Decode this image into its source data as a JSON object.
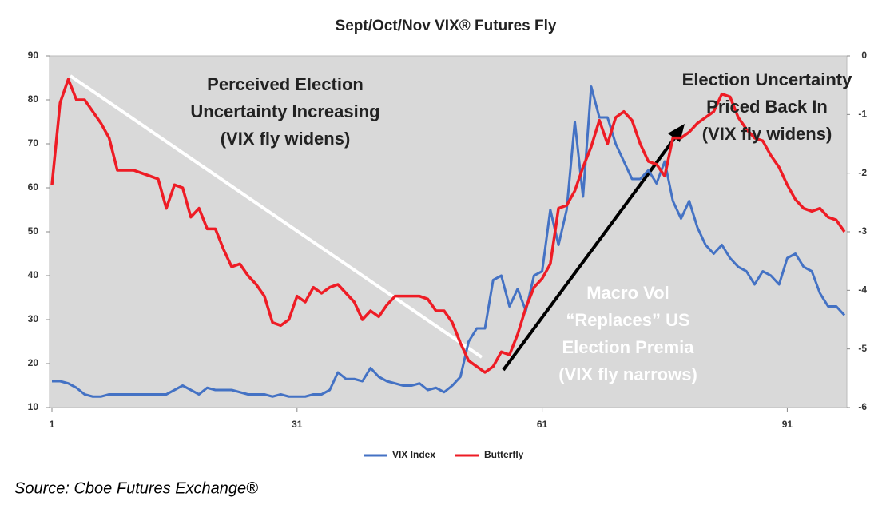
{
  "chart_data": {
    "type": "line",
    "title": "Sept/Oct/Nov VIX® Futures Fly",
    "source": "Source: Cboe Futures Exchange®",
    "x": [
      1,
      2,
      3,
      4,
      5,
      6,
      7,
      8,
      9,
      10,
      11,
      12,
      13,
      14,
      15,
      16,
      17,
      18,
      19,
      20,
      21,
      22,
      23,
      24,
      25,
      26,
      27,
      28,
      29,
      30,
      31,
      32,
      33,
      34,
      35,
      36,
      37,
      38,
      39,
      40,
      41,
      42,
      43,
      44,
      45,
      46,
      47,
      48,
      49,
      50,
      51,
      52,
      53,
      54,
      55,
      56,
      57,
      58,
      59,
      60,
      61,
      62,
      63,
      64,
      65,
      66,
      67,
      68,
      69,
      70,
      71,
      72,
      73,
      74,
      75,
      76,
      77,
      78,
      79,
      80,
      81,
      82,
      83,
      84,
      85,
      86,
      87,
      88,
      89,
      90,
      91,
      92,
      93,
      94,
      95,
      96,
      97,
      98
    ],
    "xlim": [
      1,
      98
    ],
    "xticks": [
      1,
      31,
      61,
      91
    ],
    "ylim": [
      10,
      90
    ],
    "yticks": [
      10,
      20,
      30,
      40,
      50,
      60,
      70,
      80,
      90
    ],
    "y2lim": [
      -6,
      0
    ],
    "y2ticks": [
      -6,
      -5,
      -4,
      -3,
      -2,
      -1,
      0
    ],
    "legend": "bottom",
    "series": [
      {
        "name": "VIX Index",
        "color": "#4472c4",
        "values": [
          16,
          16,
          15.5,
          14.5,
          13,
          12.5,
          12.5,
          13,
          13,
          13,
          13,
          13,
          13,
          13,
          13,
          14,
          15,
          14,
          13,
          14.5,
          14,
          14,
          14,
          13.5,
          13,
          13,
          13,
          12.5,
          13,
          12.5,
          12.5,
          12.5,
          13,
          13,
          14,
          18,
          16.5,
          16.5,
          16,
          19,
          17,
          16,
          15.5,
          15,
          15,
          15.5,
          14,
          14.5,
          13.5,
          15,
          17,
          25,
          28,
          28,
          39,
          40,
          33,
          37,
          32,
          40,
          41,
          55,
          47,
          55,
          75,
          58,
          83,
          76,
          76,
          70,
          66,
          62,
          62,
          64,
          61,
          66,
          57,
          53,
          57,
          51,
          47,
          45,
          47,
          44,
          42,
          41,
          38,
          41,
          40,
          38,
          44,
          45,
          42,
          41,
          36,
          33,
          33,
          31
        ]
      },
      {
        "name": "Butterfly",
        "color": "#ee1c25",
        "axis": "y2",
        "values": [
          -2.2,
          -0.8,
          -0.4,
          -0.75,
          -0.75,
          -0.95,
          -1.15,
          -1.4,
          -1.95,
          -1.95,
          -1.95,
          -2.0,
          -2.05,
          -2.1,
          -2.6,
          -2.2,
          -2.25,
          -2.75,
          -2.6,
          -2.95,
          -2.95,
          -3.3,
          -3.6,
          -3.55,
          -3.75,
          -3.9,
          -4.1,
          -4.55,
          -4.6,
          -4.5,
          -4.1,
          -4.2,
          -3.95,
          -4.05,
          -3.95,
          -3.9,
          -4.05,
          -4.2,
          -4.5,
          -4.35,
          -4.45,
          -4.25,
          -4.1,
          -4.1,
          -4.1,
          -4.1,
          -4.15,
          -4.35,
          -4.35,
          -4.55,
          -4.9,
          -5.2,
          -5.3,
          -5.4,
          -5.3,
          -5.05,
          -5.1,
          -4.75,
          -4.3,
          -3.95,
          -3.8,
          -3.55,
          -2.6,
          -2.55,
          -2.3,
          -1.9,
          -1.55,
          -1.1,
          -1.5,
          -1.05,
          -0.95,
          -1.1,
          -1.5,
          -1.8,
          -1.85,
          -2.05,
          -1.4,
          -1.4,
          -1.3,
          -1.15,
          -1.05,
          -0.95,
          -0.65,
          -0.7,
          -1.05,
          -1.25,
          -1.4,
          -1.45,
          -1.7,
          -1.9,
          -2.2,
          -2.45,
          -2.6,
          -2.65,
          -2.6,
          -2.75,
          -2.8,
          -3.0
        ]
      }
    ],
    "annotations": [
      {
        "lines": [
          "Perceived Election",
          "Uncertainty Increasing",
          "(VIX fly widens)"
        ]
      },
      {
        "lines": [
          "Election Uncertainty",
          "Priced Back In",
          "(VIX fly widens)"
        ]
      },
      {
        "lines": [
          "Macro Vol",
          "“Replaces” US",
          "Election Premia",
          "(VIX fly narrows)"
        ]
      }
    ]
  }
}
